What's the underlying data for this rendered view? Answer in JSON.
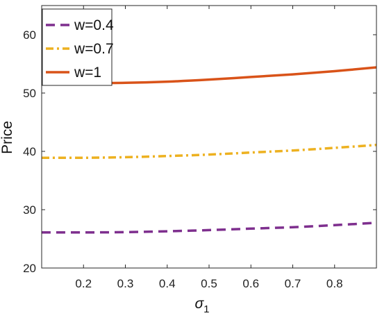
{
  "chart_data": {
    "type": "line",
    "title": "",
    "xlabel": "σ",
    "xlabel_sub": "1",
    "ylabel": "Price",
    "xlim": [
      0.1,
      0.9
    ],
    "ylim": [
      20,
      65
    ],
    "x_ticks": [
      0.2,
      0.3,
      0.4,
      0.5,
      0.6,
      0.7,
      0.8
    ],
    "x_tick_labels": [
      "0.2",
      "0.3",
      "0.4",
      "0.5",
      "0.6",
      "0.7",
      "0.8"
    ],
    "y_ticks": [
      20,
      30,
      40,
      50,
      60
    ],
    "y_tick_labels": [
      "20",
      "30",
      "40",
      "50",
      "60"
    ],
    "grid": false,
    "legend_position": "top-left",
    "x": [
      0.1,
      0.2,
      0.3,
      0.4,
      0.5,
      0.6,
      0.7,
      0.8,
      0.9
    ],
    "series": [
      {
        "name": "w=0.4",
        "color": "#7E2F8E",
        "style": "dashed",
        "values": [
          26.1,
          26.1,
          26.15,
          26.3,
          26.5,
          26.75,
          27.0,
          27.35,
          27.75
        ]
      },
      {
        "name": "w=0.7",
        "color": "#EDB120",
        "style": "dashdot",
        "values": [
          38.9,
          38.9,
          39.0,
          39.2,
          39.45,
          39.8,
          40.15,
          40.6,
          41.1
        ]
      },
      {
        "name": "w=1",
        "color": "#D95319",
        "style": "solid",
        "values": [
          51.7,
          51.7,
          51.75,
          51.95,
          52.3,
          52.75,
          53.2,
          53.75,
          54.4
        ]
      }
    ]
  }
}
